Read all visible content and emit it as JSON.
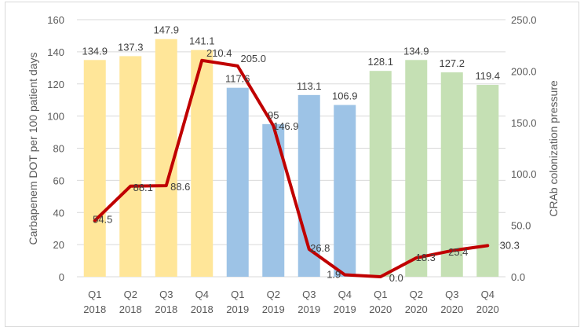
{
  "chart_data": {
    "type": "bar",
    "categories": [
      [
        "Q1",
        "2018"
      ],
      [
        "Q2",
        "2018"
      ],
      [
        "Q3",
        "2018"
      ],
      [
        "Q4",
        "2018"
      ],
      [
        "Q1",
        "2019"
      ],
      [
        "Q2",
        "2019"
      ],
      [
        "Q3",
        "2019"
      ],
      [
        "Q4",
        "2019"
      ],
      [
        "Q1",
        "2020"
      ],
      [
        "Q2",
        "2020"
      ],
      [
        "Q3",
        "2020"
      ],
      [
        "Q4",
        "2020"
      ]
    ],
    "bar_series": {
      "values": [
        134.9,
        137.3,
        147.9,
        141.1,
        117.6,
        95,
        113.1,
        106.9,
        128.1,
        134.9,
        127.2,
        119.4
      ],
      "labels": [
        "134.9",
        "137.3",
        "147.9",
        "141.1",
        "117.6",
        "95",
        "113.1",
        "106.9",
        "128.1",
        "134.9",
        "127.2",
        "119.4"
      ],
      "colors": [
        "#ffe699",
        "#ffe699",
        "#ffe699",
        "#ffe699",
        "#9dc3e6",
        "#9dc3e6",
        "#9dc3e6",
        "#9dc3e6",
        "#c5e0b4",
        "#c5e0b4",
        "#c5e0b4",
        "#c5e0b4"
      ]
    },
    "line_series": {
      "values": [
        54.5,
        88.1,
        88.6,
        210.4,
        205.0,
        146.9,
        26.8,
        1.9,
        0.0,
        18.3,
        25.4,
        30.3
      ],
      "labels": [
        "54.5",
        "88.1",
        "88.6",
        "210.4",
        "205.0",
        "146.9",
        "26.8",
        "1.9",
        "0.0",
        "18.3",
        "25.4",
        "30.3"
      ],
      "color": "#c00000"
    },
    "y_left": {
      "label": "Carbapenem DOT per 100 patient days",
      "range": [
        0,
        160
      ],
      "ticks": [
        "0",
        "20",
        "40",
        "60",
        "80",
        "100",
        "120",
        "140",
        "160"
      ]
    },
    "y_right": {
      "label": "CRAb colonization pressure",
      "range": [
        0,
        250
      ],
      "ticks": [
        "0.0",
        "50.0",
        "100.0",
        "150.0",
        "200.0",
        "250.0"
      ]
    },
    "grid": true,
    "gridline_color": "#d9d9d9"
  }
}
